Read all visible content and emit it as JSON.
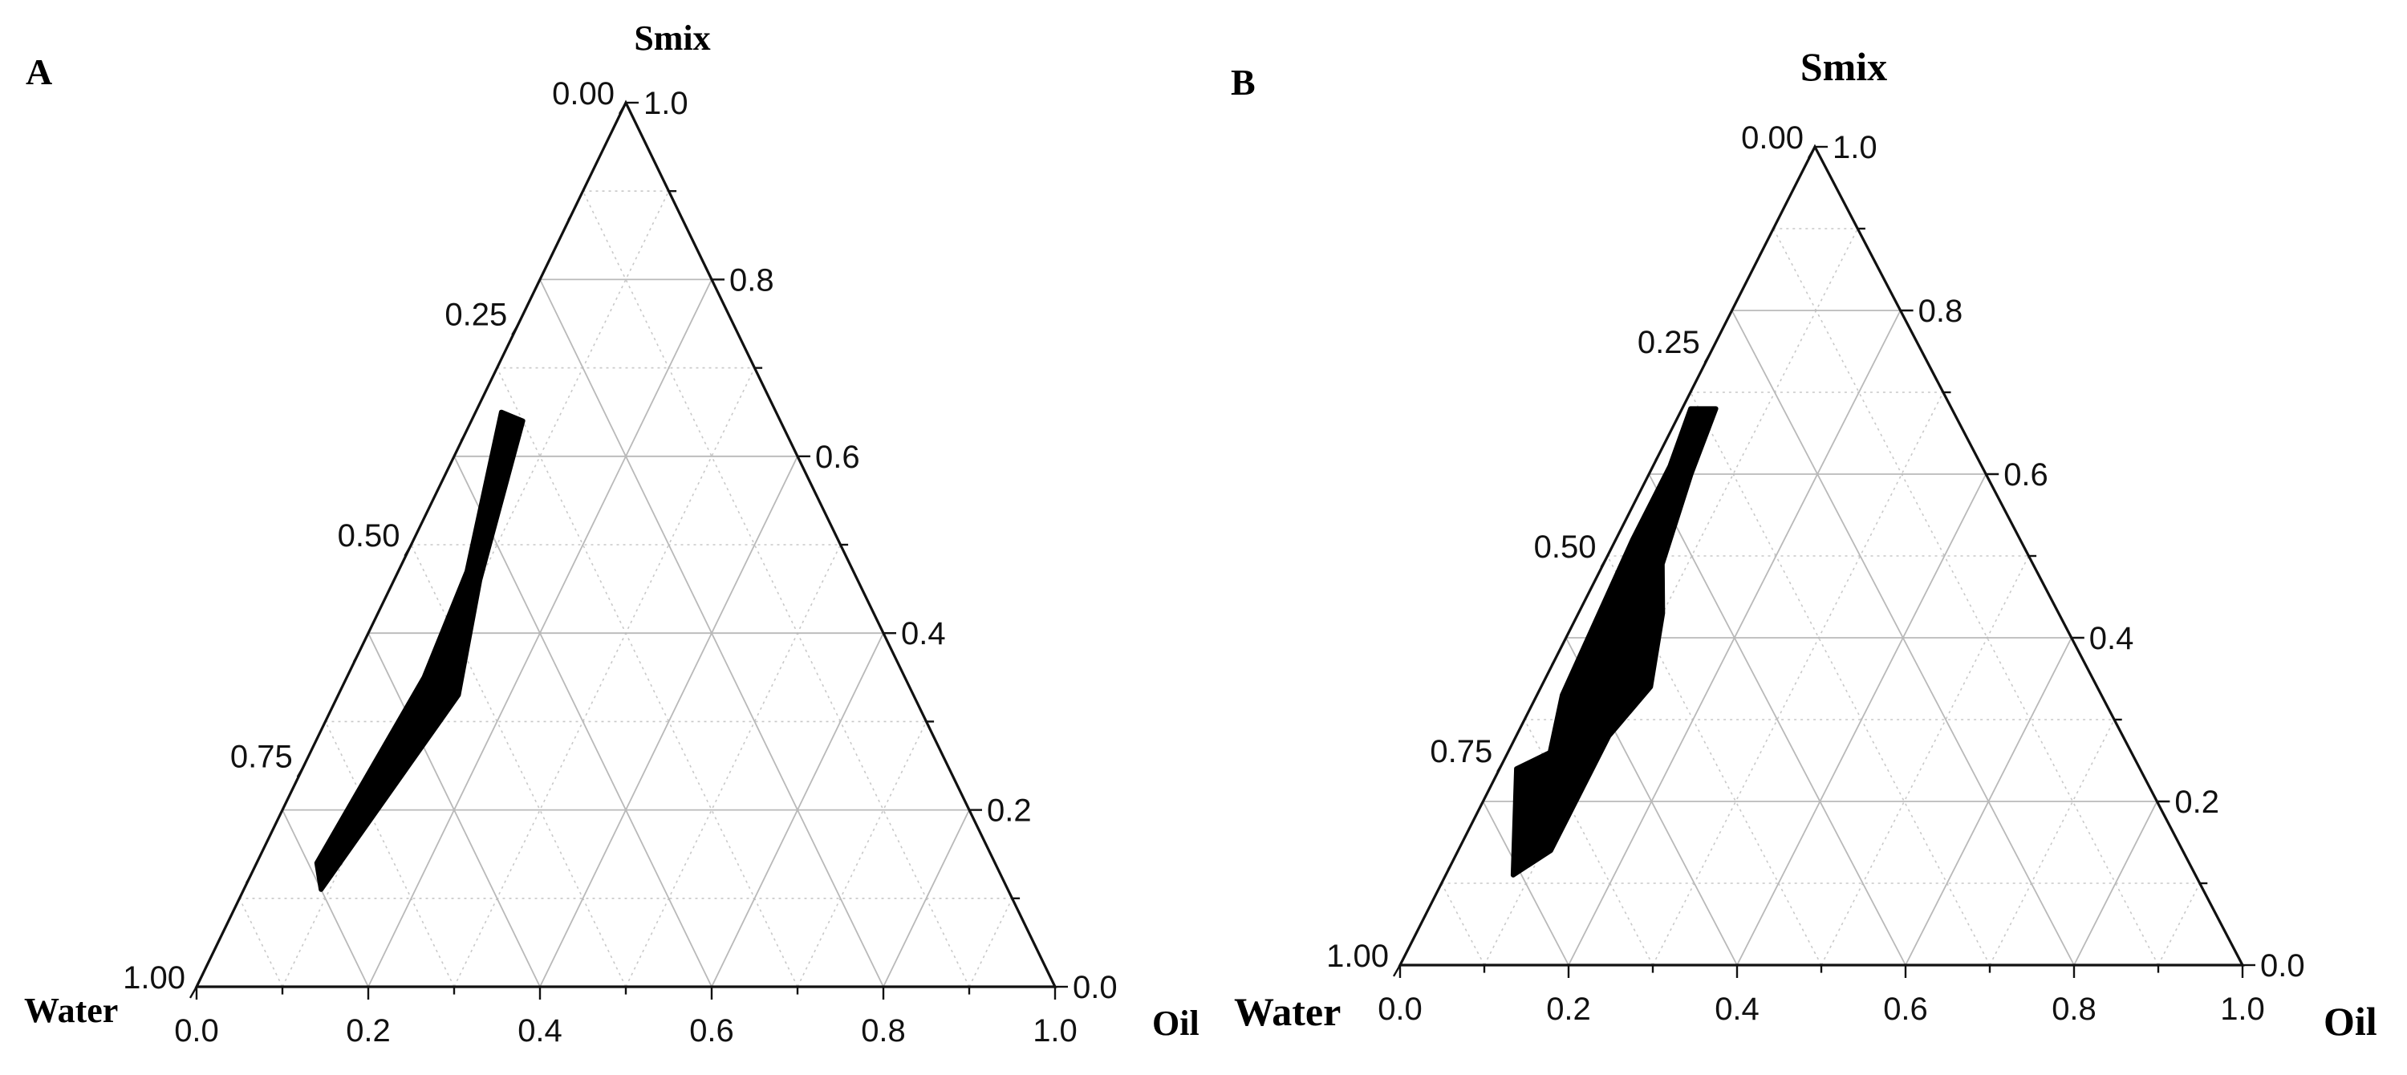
{
  "chart_data": [
    {
      "type": "ternary",
      "panel_label": "A",
      "vertex_labels": {
        "top": "Smix",
        "left": "Water",
        "right": "Oil"
      },
      "axes": {
        "bottom": {
          "component": "Oil",
          "ticks": [
            "0.0",
            "0.2",
            "0.4",
            "0.6",
            "0.8",
            "1.0"
          ]
        },
        "right": {
          "component": "Smix",
          "ticks": [
            "0.0",
            "0.2",
            "0.4",
            "0.6",
            "0.8",
            "1.0"
          ]
        },
        "left": {
          "component": "Water",
          "ticks": [
            "0.00",
            "0.25",
            "0.50",
            "0.75",
            "1.00"
          ]
        }
      },
      "grid": {
        "solid_step": 0.2,
        "dotted_step": 0.1
      },
      "region": {
        "name": "",
        "color": "#000000",
        "vertices": [
          {
            "water": 0.32,
            "oil": 0.03,
            "smix": 0.65
          },
          {
            "water": 0.3,
            "oil": 0.06,
            "smix": 0.64
          },
          {
            "water": 0.44,
            "oil": 0.1,
            "smix": 0.46
          },
          {
            "water": 0.53,
            "oil": 0.14,
            "smix": 0.33
          },
          {
            "water": 0.8,
            "oil": 0.09,
            "smix": 0.11
          },
          {
            "water": 0.79,
            "oil": 0.07,
            "smix": 0.14
          },
          {
            "water": 0.56,
            "oil": 0.09,
            "smix": 0.35
          },
          {
            "water": 0.45,
            "oil": 0.08,
            "smix": 0.47
          }
        ]
      }
    },
    {
      "type": "ternary",
      "panel_label": "B",
      "vertex_labels": {
        "top": "Smix",
        "left": "Water",
        "right": "Oil"
      },
      "axes": {
        "bottom": {
          "component": "Oil",
          "ticks": [
            "0.0",
            "0.2",
            "0.4",
            "0.6",
            "0.8",
            "1.0"
          ]
        },
        "right": {
          "component": "Smix",
          "ticks": [
            "0.0",
            "0.2",
            "0.4",
            "0.6",
            "0.8",
            "1.0"
          ]
        },
        "left": {
          "component": "Water",
          "ticks": [
            "0.00",
            "0.25",
            "0.50",
            "0.75",
            "1.00"
          ]
        }
      },
      "grid": {
        "solid_step": 0.2,
        "dotted_step": 0.1
      },
      "region": {
        "name": "",
        "color": "#000000",
        "vertices": [
          {
            "water": 0.31,
            "oil": 0.01,
            "smix": 0.68
          },
          {
            "water": 0.28,
            "oil": 0.04,
            "smix": 0.68
          },
          {
            "water": 0.35,
            "oil": 0.05,
            "smix": 0.6
          },
          {
            "water": 0.44,
            "oil": 0.07,
            "smix": 0.49
          },
          {
            "water": 0.47,
            "oil": 0.1,
            "smix": 0.43
          },
          {
            "water": 0.53,
            "oil": 0.13,
            "smix": 0.34
          },
          {
            "water": 0.61,
            "oil": 0.11,
            "smix": 0.28
          },
          {
            "water": 0.75,
            "oil": 0.11,
            "smix": 0.14
          },
          {
            "water": 0.81,
            "oil": 0.08,
            "smix": 0.11
          },
          {
            "water": 0.74,
            "oil": 0.02,
            "smix": 0.24
          },
          {
            "water": 0.69,
            "oil": 0.05,
            "smix": 0.26
          },
          {
            "water": 0.64,
            "oil": 0.03,
            "smix": 0.33
          },
          {
            "water": 0.46,
            "oil": 0.02,
            "smix": 0.52
          },
          {
            "water": 0.37,
            "oil": 0.02,
            "smix": 0.61
          }
        ]
      }
    }
  ]
}
